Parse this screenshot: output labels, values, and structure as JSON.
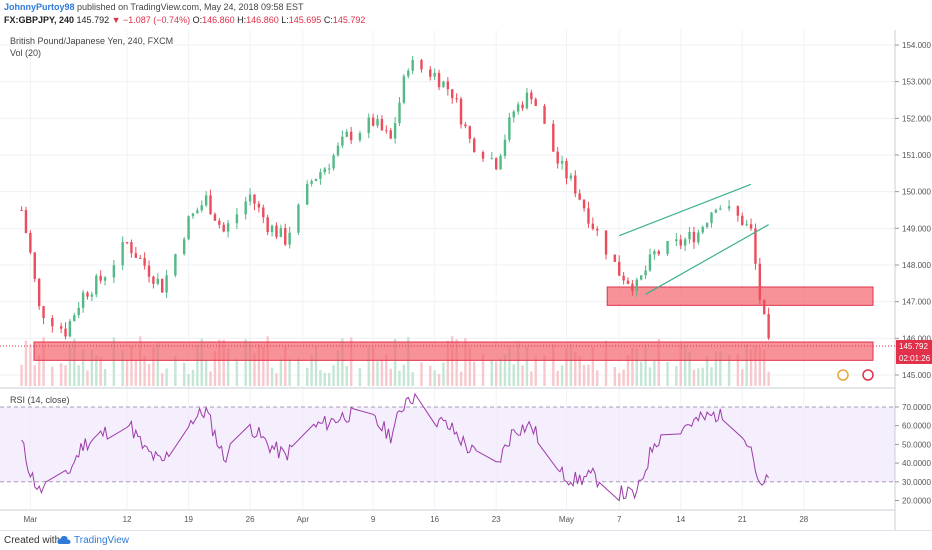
{
  "header": {
    "author": "JohnnyPurtoy98",
    "published": "published on TradingView.com, May 24, 2018 09:58 EST",
    "symbol": "FX:GBPJPY, 240",
    "last": "145.792",
    "change": "▼ −1.087 (−0.74%)",
    "o_label": "O:",
    "o_val": "146.860",
    "h_label": "H:",
    "h_val": "146.860",
    "l_label": "L:",
    "l_val": "145.695",
    "c_label": "C:",
    "c_val": "145.792"
  },
  "pane": {
    "title": "British Pound/Japanese Yen, 240, FXCM",
    "vol_label": "Vol (20)",
    "rsi_label": "RSI (14, close)",
    "price_tag": "145.792",
    "countdown_tag": "02:01:26"
  },
  "footer": {
    "created_with": "Created with",
    "brand": "TradingView"
  },
  "colors": {
    "up": "#53b987",
    "down": "#eb4d5c",
    "zone_fill": "#f4646e",
    "zone_border": "#e0304a",
    "channel": "#3bb08f",
    "rsi_line": "#9c3ba8",
    "rsi_band": "#ece2fb",
    "price_tag": "#e0304a"
  },
  "chart_data": [
    {
      "type": "line",
      "subtype": "candlestick",
      "title": "British Pound/Japanese Yen, 240, FXCM",
      "xlabel": "",
      "ylabel": "",
      "ylim": [
        144.7,
        154.3
      ],
      "y_ticks": [
        "154.000",
        "153.000",
        "152.000",
        "151.000",
        "150.000",
        "149.000",
        "148.000",
        "147.000",
        "146.000",
        "145.000"
      ],
      "x_ticks": [
        "Mar",
        "12",
        "19",
        "26",
        "Apr",
        "9",
        "16",
        "23",
        "May",
        "7",
        "14",
        "21",
        "28"
      ],
      "series": [
        {
          "x": [
            "Feb 28",
            "Mar 1",
            "Mar 2",
            "Mar 5",
            "Mar 7",
            "Mar 9",
            "Mar 12",
            "Mar 14",
            "Mar 16",
            "Mar 19",
            "Mar 21",
            "Mar 23",
            "Mar 26",
            "Mar 28",
            "Mar 30",
            "Apr 2",
            "Apr 4",
            "Apr 6",
            "Apr 9",
            "Apr 11",
            "Apr 13",
            "Apr 16",
            "Apr 18",
            "Apr 20",
            "Apr 23",
            "Apr 25",
            "Apr 27",
            "Apr 30",
            "May 2",
            "May 4",
            "May 7",
            "May 9",
            "May 11",
            "May 14",
            "May 16",
            "May 18",
            "May 21",
            "May 22",
            "May 23",
            "May 24"
          ],
          "values": [
            149.5,
            148.3,
            146.8,
            146.2,
            147.2,
            147.6,
            148.6,
            148.0,
            147.4,
            149.2,
            149.8,
            148.9,
            149.9,
            149.1,
            148.7,
            150.3,
            150.8,
            151.5,
            151.9,
            151.4,
            153.5,
            153.2,
            152.7,
            151.4,
            150.8,
            152.2,
            152.7,
            150.8,
            150.1,
            149.1,
            147.8,
            147.4,
            148.3,
            148.6,
            148.9,
            149.7,
            149.2,
            148.9,
            147.1,
            145.79
          ]
        }
      ],
      "annotations": [
        {
          "kind": "zone",
          "y_range": [
            146.9,
            147.4
          ],
          "x_range": [
            "May 7",
            "May 27"
          ]
        },
        {
          "kind": "zone",
          "y_range": [
            145.4,
            145.9
          ],
          "x_range": [
            "Feb 28",
            "May 27"
          ]
        },
        {
          "kind": "channel_upper",
          "points": [
            [
              "May 7",
              148.8
            ],
            [
              "May 22",
              150.2
            ]
          ]
        },
        {
          "kind": "channel_lower",
          "points": [
            [
              "May 10",
              147.2
            ],
            [
              "May 24",
              149.1
            ]
          ]
        }
      ]
    },
    {
      "type": "line",
      "title": "RSI (14, close)",
      "xlabel": "",
      "ylabel": "",
      "ylim": [
        16,
        78
      ],
      "y_ticks": [
        "70.0000",
        "60.0000",
        "50.0000",
        "40.0000",
        "30.0000",
        "20.0000"
      ],
      "band": [
        30,
        70
      ],
      "series": [
        {
          "name": "RSI (14, close)",
          "x": [
            "Feb 28",
            "Mar 1",
            "Mar 2",
            "Mar 5",
            "Mar 7",
            "Mar 9",
            "Mar 12",
            "Mar 14",
            "Mar 16",
            "Mar 19",
            "Mar 21",
            "Mar 23",
            "Mar 26",
            "Mar 28",
            "Mar 30",
            "Apr 2",
            "Apr 4",
            "Apr 6",
            "Apr 9",
            "Apr 11",
            "Apr 13",
            "Apr 16",
            "Apr 18",
            "Apr 20",
            "Apr 23",
            "Apr 25",
            "Apr 27",
            "Apr 30",
            "May 2",
            "May 4",
            "May 7",
            "May 9",
            "May 11",
            "May 14",
            "May 16",
            "May 18",
            "May 21",
            "May 22",
            "May 23",
            "May 24"
          ],
          "values": [
            51,
            35,
            25,
            32,
            50,
            55,
            63,
            47,
            40,
            62,
            68,
            43,
            60,
            50,
            44,
            59,
            62,
            66,
            63,
            55,
            77,
            64,
            58,
            47,
            38,
            58,
            60,
            35,
            31,
            33,
            24,
            23,
            52,
            59,
            63,
            66,
            58,
            49,
            26,
            31
          ]
        }
      ]
    }
  ]
}
